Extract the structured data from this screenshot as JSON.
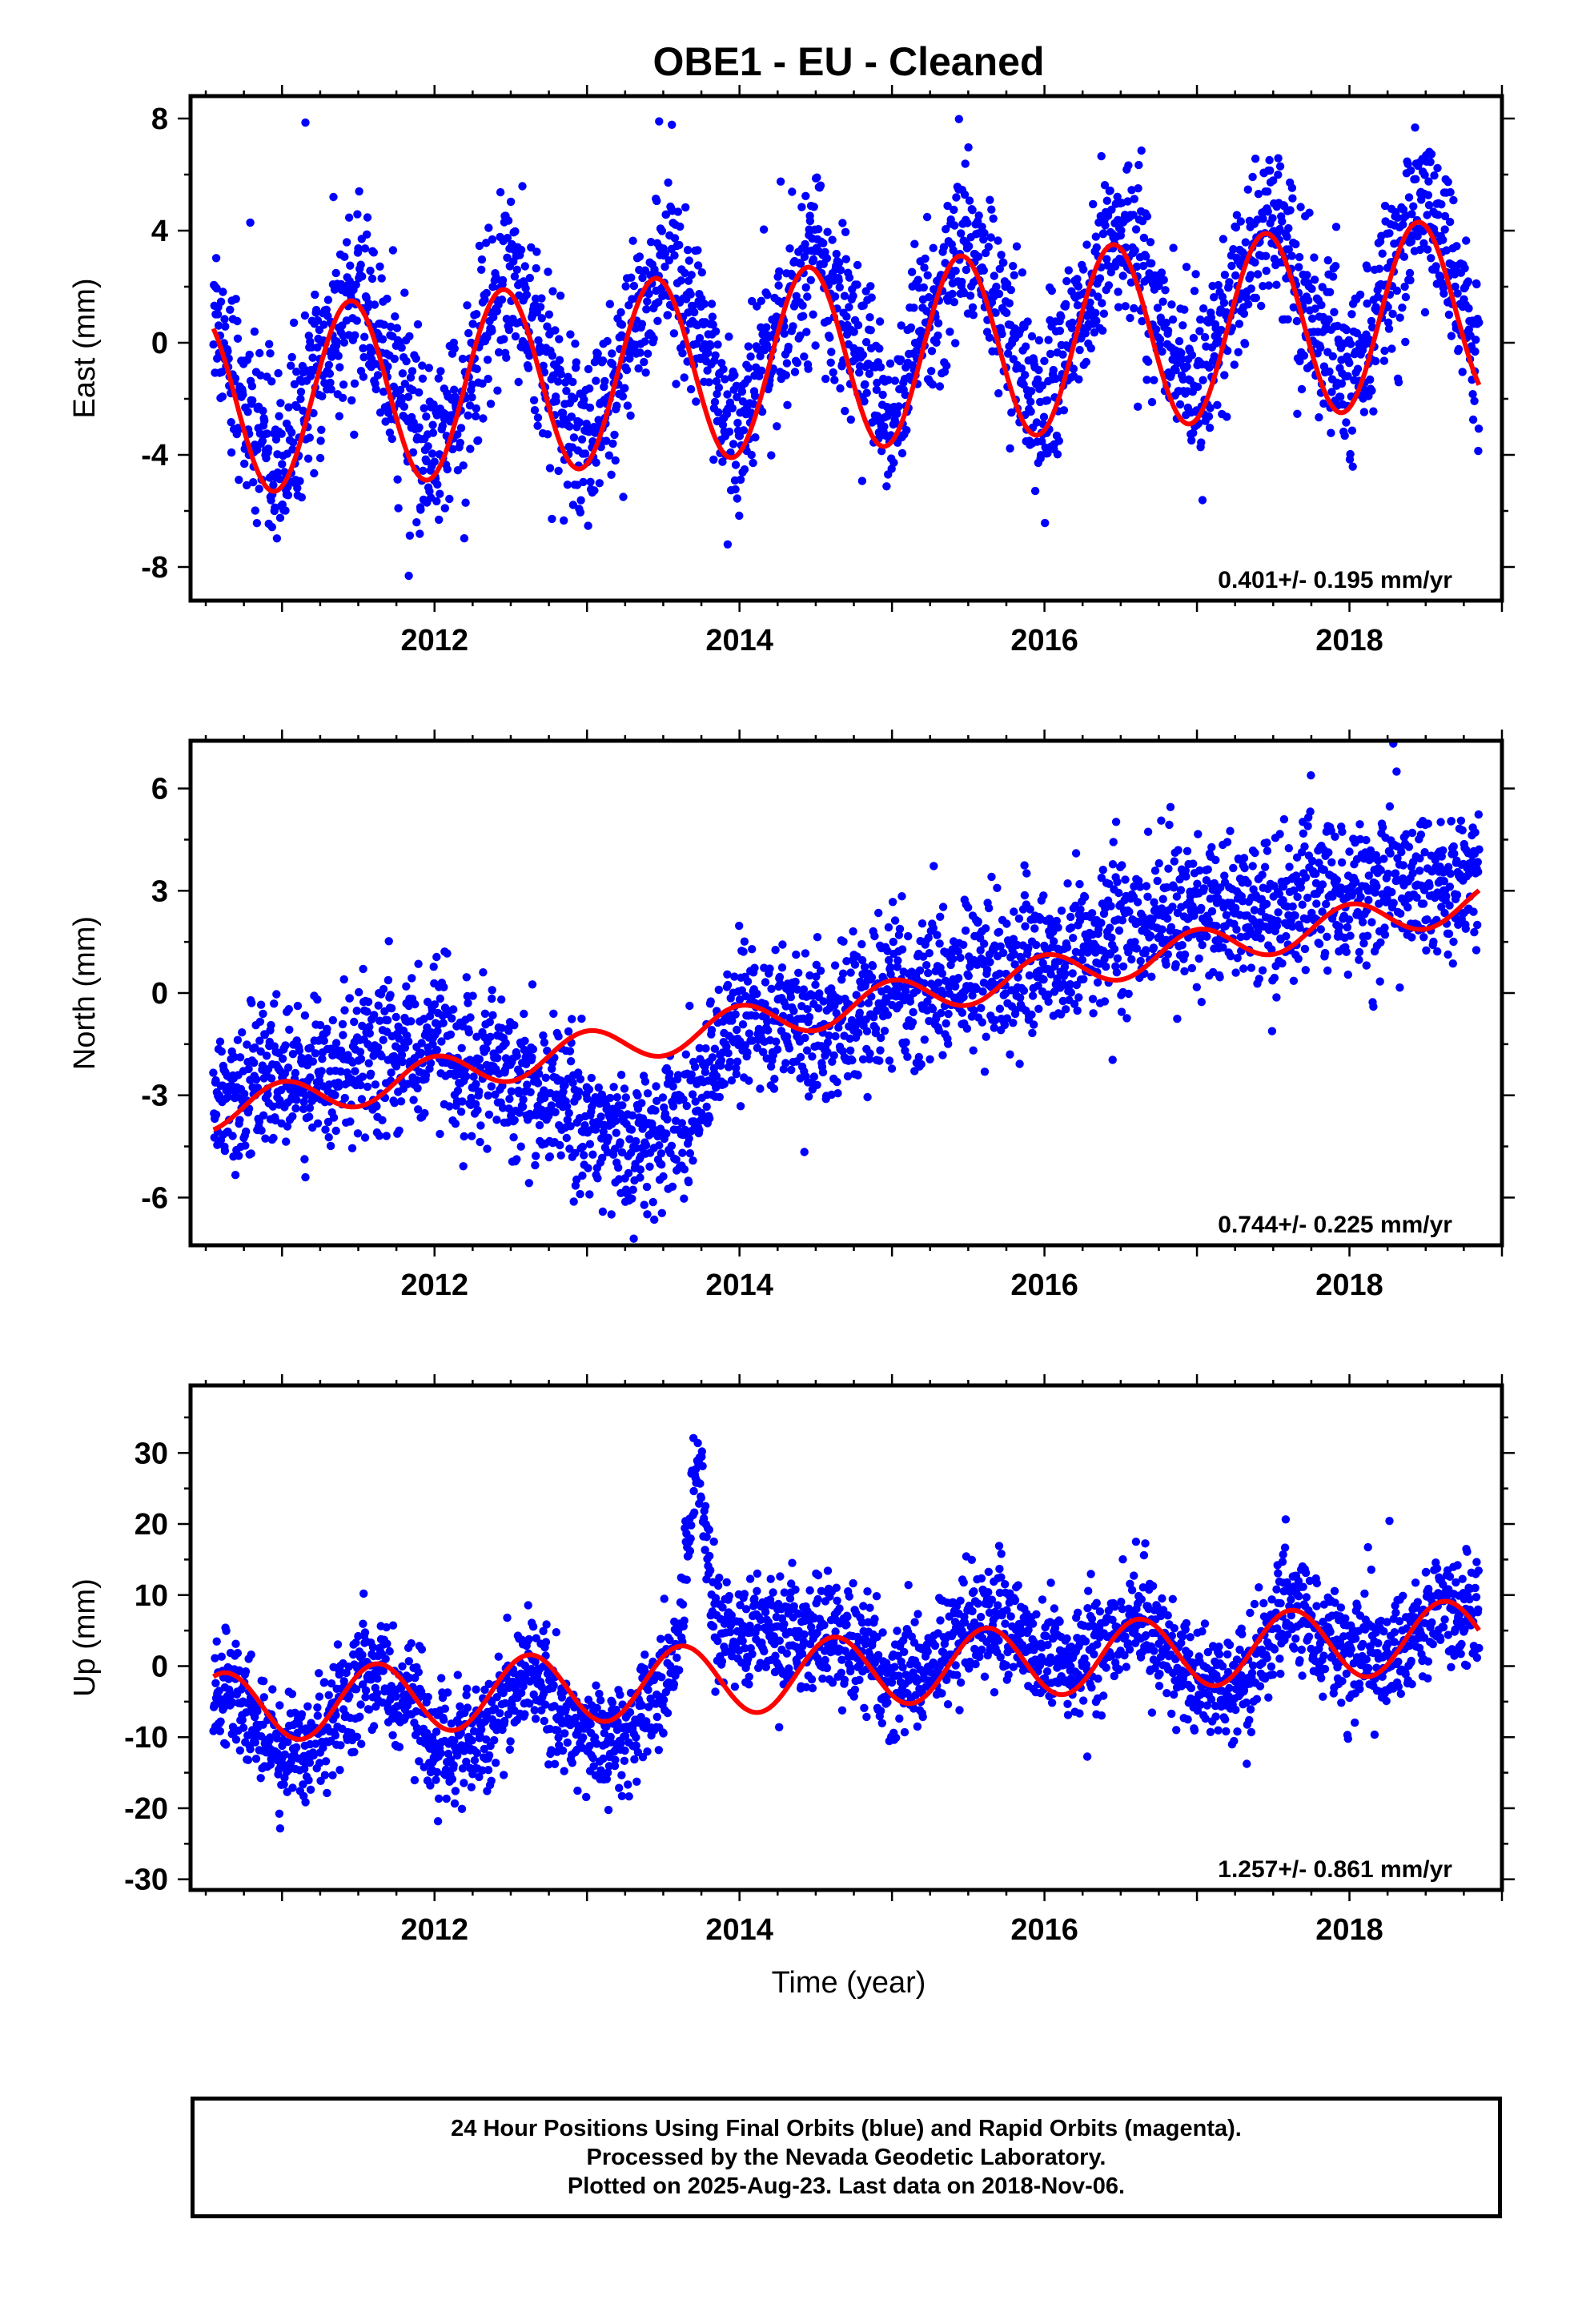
{
  "title": "OBE1  - EU - Cleaned",
  "xlabel": "Time (year)",
  "colors": {
    "points": "#0000ff",
    "fit": "#ff0000",
    "frame": "#000000"
  },
  "caption": {
    "line1": "24 Hour Positions Using Final Orbits (blue) and Rapid Orbits (magenta).",
    "line2": "Processed by the Nevada Geodetic Laboratory.",
    "line3": "Plotted on 2025-Aug-23. Last data on 2018-Nov-06."
  },
  "chart_data": [
    {
      "type": "scatter",
      "ylabel": "East (mm)",
      "rate_label": "0.401+/- 0.195 mm/yr",
      "xlim": [
        2010.4,
        2019.0
      ],
      "ylim": [
        -9.2,
        8.8
      ],
      "xticks": [
        2012,
        2014,
        2016,
        2018
      ],
      "yticks": [
        -8,
        -4,
        0,
        4,
        8
      ],
      "x_range": [
        2010.55,
        2018.85
      ],
      "series": [
        {
          "kind": "points",
          "x": [
            2010.55,
            2010.8,
            2011.0,
            2011.25,
            2011.5,
            2011.75,
            2012.0,
            2012.25,
            2012.5,
            2012.75,
            2013.0,
            2013.25,
            2013.5,
            2013.75,
            2014.0,
            2014.25,
            2014.5,
            2014.75,
            2015.0,
            2015.25,
            2015.5,
            2015.75,
            2016.0,
            2016.25,
            2016.5,
            2016.75,
            2017.0,
            2017.25,
            2017.5,
            2017.75,
            2018.0,
            2018.25,
            2018.5,
            2018.75,
            2018.85
          ],
          "y": [
            1.5,
            -3.0,
            -4.5,
            -0.5,
            2.0,
            -1.5,
            -4.0,
            -1.0,
            2.5,
            -1.0,
            -3.8,
            -0.5,
            3.0,
            0.0,
            -3.2,
            0.5,
            3.5,
            0.5,
            -2.8,
            1.0,
            4.0,
            0.5,
            -2.5,
            1.5,
            4.3,
            0.8,
            -2.0,
            2.0,
            4.8,
            1.0,
            -1.8,
            2.5,
            5.0,
            1.5,
            -0.5
          ],
          "noise_sd": 1.5
        },
        {
          "kind": "fit",
          "trend": {
            "offset": -0.5,
            "rate": 0.401,
            "x0": 2014.7
          },
          "seasonal": {
            "amplitude": 3.3,
            "peak": 0.45
          }
        }
      ]
    },
    {
      "type": "scatter",
      "ylabel": "North (mm)",
      "rate_label": "0.744+/- 0.225 mm/yr",
      "xlim": [
        2010.4,
        2019.0
      ],
      "ylim": [
        -7.4,
        7.4
      ],
      "xticks": [
        2012,
        2014,
        2016,
        2018
      ],
      "yticks": [
        -6,
        -3,
        0,
        3,
        6
      ],
      "x_range": [
        2010.55,
        2018.85
      ],
      "series": [
        {
          "kind": "points",
          "x": [
            2010.55,
            2011.0,
            2011.5,
            2012.0,
            2012.5,
            2013.0,
            2013.25,
            2013.5,
            2013.75,
            2014.0,
            2014.5,
            2015.0,
            2015.5,
            2016.0,
            2016.5,
            2017.0,
            2017.5,
            2018.0,
            2018.5,
            2018.85
          ],
          "y": [
            -3.0,
            -2.5,
            -2.0,
            -1.5,
            -2.5,
            -3.5,
            -4.5,
            -4.0,
            -3.0,
            -0.5,
            -1.0,
            0.0,
            0.5,
            1.0,
            1.8,
            2.5,
            2.5,
            3.0,
            3.0,
            3.8
          ],
          "noise_sd": 1.1
        },
        {
          "kind": "fit",
          "trend": {
            "offset": -0.4,
            "rate": 0.744,
            "x0": 2014.7
          },
          "seasonal": {
            "amplitude": 0.55,
            "peak": 0.0
          }
        }
      ]
    },
    {
      "type": "scatter",
      "ylabel": "Up (mm)",
      "rate_label": "1.257+/- 0.861 mm/yr",
      "xlim": [
        2010.4,
        2019.0
      ],
      "ylim": [
        -31.5,
        39.5
      ],
      "xticks": [
        2012,
        2014,
        2016,
        2018
      ],
      "yticks": [
        -30,
        -20,
        -10,
        0,
        10,
        20,
        30
      ],
      "x_range": [
        2010.55,
        2018.85
      ],
      "series": [
        {
          "kind": "points",
          "x": [
            2010.55,
            2011.0,
            2011.25,
            2011.6,
            2012.0,
            2012.25,
            2012.6,
            2013.0,
            2013.25,
            2013.6,
            2013.72,
            2013.85,
            2014.25,
            2014.6,
            2015.0,
            2015.25,
            2015.6,
            2016.0,
            2016.25,
            2016.6,
            2017.0,
            2017.25,
            2017.6,
            2018.0,
            2018.25,
            2018.6,
            2018.85
          ],
          "y": [
            -2.0,
            -12.0,
            -10.0,
            0.0,
            -10.0,
            -12.0,
            0.0,
            -10.0,
            -10.0,
            2.0,
            30.0,
            5.0,
            5.0,
            5.0,
            -2.0,
            0.0,
            8.0,
            2.0,
            0.0,
            7.0,
            -2.0,
            -3.0,
            8.0,
            2.0,
            0.0,
            10.0,
            6.0
          ],
          "noise_sd": 4.0
        },
        {
          "kind": "fit",
          "trend": {
            "offset": -0.8,
            "rate": 1.257,
            "x0": 2014.7
          },
          "seasonal": {
            "amplitude": 5.0,
            "peak": 0.62
          }
        }
      ]
    }
  ]
}
